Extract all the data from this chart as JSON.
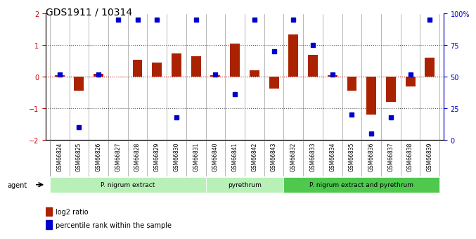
{
  "title": "GDS1911 / 10314",
  "samples": [
    "GSM66824",
    "GSM66825",
    "GSM66826",
    "GSM66827",
    "GSM66828",
    "GSM66829",
    "GSM66830",
    "GSM66831",
    "GSM66840",
    "GSM66841",
    "GSM66842",
    "GSM66843",
    "GSM66832",
    "GSM66833",
    "GSM66834",
    "GSM66835",
    "GSM66836",
    "GSM66837",
    "GSM66838",
    "GSM66839"
  ],
  "log2_ratio": [
    0.05,
    -0.45,
    0.1,
    0.0,
    0.55,
    0.45,
    0.75,
    0.65,
    0.05,
    1.05,
    0.2,
    -0.38,
    1.35,
    0.7,
    0.05,
    -0.45,
    -1.2,
    -0.8,
    -0.3,
    0.6
  ],
  "percentile": [
    52,
    10,
    52,
    95,
    95,
    95,
    18,
    95,
    52,
    36,
    95,
    70,
    95,
    75,
    52,
    20,
    5,
    18,
    52,
    95
  ],
  "groups": [
    {
      "label": "P. nigrum extract",
      "start": 0,
      "end": 7,
      "color": "#90ee90"
    },
    {
      "label": "pyrethrum",
      "start": 8,
      "end": 11,
      "color": "#90ee90"
    },
    {
      "label": "P. nigrum extract and pyrethrum",
      "start": 12,
      "end": 19,
      "color": "#32cd32"
    }
  ],
  "bar_color": "#aa2200",
  "dot_color": "#0000cc",
  "zero_line_color": "#cc0000",
  "ylim": [
    -2,
    2
  ],
  "yticks_left": [
    -2,
    -1,
    0,
    1,
    2
  ],
  "yticks_right": [
    0,
    25,
    50,
    75,
    100
  ],
  "dotted_line_color": "#555555",
  "bg_color": "#ffffff",
  "tick_label_color_left": "#cc0000",
  "tick_label_color_right": "#0000cc"
}
